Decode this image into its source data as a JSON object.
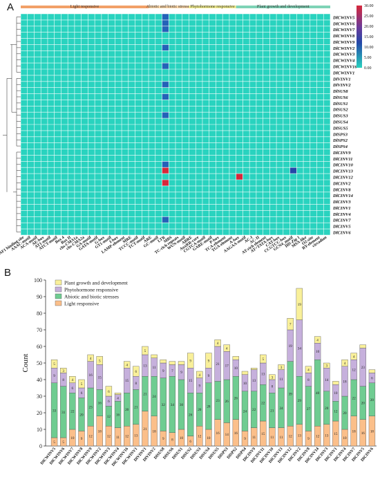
{
  "panel_a": {
    "label": "A",
    "categories": [
      {
        "name": "Light responsive",
        "color": "#f2a068",
        "cols": 19
      },
      {
        "name": "Abiotic and biotic stresses",
        "color": "#fdd7a8",
        "cols": 6
      },
      {
        "name": "Phytohormone responsive",
        "color": "#f3ee8d",
        "cols": 7
      },
      {
        "name": "Plant growth and development",
        "color": "#7fd3b6",
        "cols": 14
      }
    ],
    "colorbar_ticks": [
      "30.00",
      "25.00",
      "20.00",
      "15.00",
      "10.00",
      "5.00",
      "0.00"
    ],
    "motif_labels": [
      "3-AF1 binding site",
      "AAAC-motif",
      "ACA-motif",
      "AE-box",
      "AT1-motif",
      "ATCT-motif",
      "Box 4",
      "Box II",
      "chs-CMA1a",
      "chs-CMA2a",
      "GA-motif",
      "GATA-motif",
      "G-box",
      "GT1-motif",
      "I-box",
      "LAMP-element",
      "MRE",
      "TCCC-motif",
      "TCT-motif",
      "ARE",
      "GC-motif",
      "LTR",
      "MBS",
      "TC-rich repeats",
      "WUN-motif",
      "ABRE",
      "AuxRR-core",
      "CGTCA-motif",
      "GARE-motif",
      "P-box",
      "TCA-element",
      "TGA-element",
      "A-box",
      "AAGAA-motif",
      "AC-I",
      "AC-II",
      "AT-rich element",
      "AT~TATA-box",
      "CAT-box",
      "CCGTCC-box",
      "GCN4_motif",
      "HD-Zip 1",
      "MSA-like",
      "O2-site",
      "RY-element",
      "circadian"
    ],
    "row_labels": [
      "DlCWINV5",
      "DlCWINV6",
      "DlCWINV7",
      "DlCWINV8",
      "DlCWINV9",
      "DlCWINV2",
      "DlCWINV3",
      "DlCWINV4",
      "DlCWINV16",
      "DlCWINV1",
      "DlVINV1",
      "DlVINV2",
      "DlSUS8",
      "DlSUS6",
      "DlSUS1",
      "DlSUS2",
      "DlSUS3",
      "DlSUS4",
      "DlSUS5",
      "DlSPS3",
      "DlSPS2",
      "DlSPS4",
      "DlCINV9",
      "DlCINV11",
      "DlCINV10",
      "DlCINV13",
      "DlCINV12",
      "DlCINV2",
      "DlCINV8",
      "DlCINV14",
      "DlCINV3",
      "DlCINV1",
      "DlCINV4",
      "DlCINV7",
      "DlCINV5",
      "DlCINV6"
    ],
    "highlights": [
      {
        "row": 0,
        "col": 21,
        "value": 12
      },
      {
        "row": 1,
        "col": 21,
        "value": 11
      },
      {
        "row": 2,
        "col": 21,
        "value": 13
      },
      {
        "row": 5,
        "col": 21,
        "value": 10
      },
      {
        "row": 8,
        "col": 21,
        "value": 9
      },
      {
        "row": 11,
        "col": 21,
        "value": 12
      },
      {
        "row": 13,
        "col": 21,
        "value": 8
      },
      {
        "row": 16,
        "col": 21,
        "value": 10
      },
      {
        "row": 24,
        "col": 21,
        "value": 11
      },
      {
        "row": 25,
        "col": 21,
        "value": 29
      },
      {
        "row": 27,
        "col": 21,
        "value": 30
      },
      {
        "row": 26,
        "col": 32,
        "value": 27
      },
      {
        "row": 25,
        "col": 40,
        "value": 14
      },
      {
        "row": 33,
        "col": 21,
        "value": 12
      }
    ]
  },
  "panel_b": {
    "label": "B",
    "chart_data": {
      "type": "bar",
      "stacked": true,
      "ylabel": "Count",
      "ylim": [
        0,
        100
      ],
      "yticks": [
        0,
        10,
        20,
        30,
        40,
        50,
        60,
        70,
        80,
        90,
        100
      ],
      "legend_position": "top-left",
      "categories": [
        "DlCWINV5",
        "DlCWINV6",
        "DlCWINV7",
        "DlCWINV8",
        "DlCWINV9",
        "DlCWINV2",
        "DlCWINV3",
        "DlCWINV4",
        "DlCWINV16",
        "DlCWINV1",
        "DlVINV1",
        "DlVINV2",
        "DlSUS8",
        "DlSUS6",
        "DlSUS1",
        "DlSUS2",
        "DlSUS3",
        "DlSUS4",
        "DlSUS5",
        "DlSPS3",
        "DlSPS2",
        "DlSPS4",
        "DlCINV9",
        "DlCINV11",
        "DlCINV10",
        "DlCINV13",
        "DlCINV12",
        "DlCINV2",
        "DlCINV8",
        "DlCINV14",
        "DlCINV3",
        "DlCINV1",
        "DlCINV4",
        "DlCINV7",
        "DlCINV5",
        "DlCINV6"
      ],
      "series": [
        {
          "name": "Light responsive",
          "color": "#fbbf8a",
          "values": [
            5,
            5,
            10,
            9,
            12,
            18,
            12,
            11,
            12,
            13,
            21,
            18,
            9,
            8,
            10,
            6,
            12,
            10,
            16,
            14,
            16,
            9,
            11,
            15,
            11,
            11,
            12,
            13,
            9,
            12,
            13,
            15,
            10,
            18,
            16,
            18
          ]
        },
        {
          "name": "Abiotic and biotic stresses",
          "color": "#6fcc91",
          "values": [
            33,
            31,
            22,
            20,
            23,
            16,
            12,
            16,
            20,
            21,
            21,
            24,
            32,
            34,
            30,
            26,
            20,
            28,
            23,
            26,
            26,
            24,
            22,
            22,
            21,
            24,
            39,
            29,
            27,
            40,
            20,
            12,
            20,
            22,
            20,
            20
          ]
        },
        {
          "name": "Phytohormone responsive",
          "color": "#c6b0dc",
          "values": [
            9,
            8,
            6,
            6,
            16,
            15,
            6,
            4,
            15,
            8,
            13,
            11,
            9,
            7,
            9,
            15,
            9,
            9,
            21,
            17,
            10,
            10,
            13,
            13,
            8,
            11,
            19,
            34,
            8,
            10,
            14,
            10,
            18,
            12,
            23,
            6
          ]
        },
        {
          "name": "Plant growth and development",
          "color": "#f9f09a",
          "values": [
            5,
            3,
            4,
            5,
            4,
            5,
            6,
            1,
            4,
            6,
            5,
            2,
            2,
            2,
            2,
            9,
            4,
            9,
            4,
            4,
            2,
            2,
            1,
            5,
            3,
            3,
            7,
            19,
            4,
            4,
            3,
            2,
            4,
            4,
            2,
            2
          ]
        }
      ]
    }
  }
}
